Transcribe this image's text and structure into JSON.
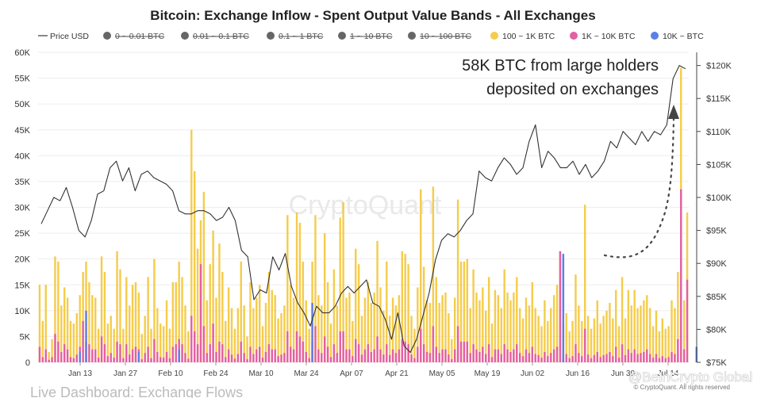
{
  "chart_data": {
    "type": "bar",
    "title": "Bitcoin: Exchange Inflow - Spent Output Value Bands - All Exchanges",
    "legend": [
      {
        "name": "Price USD",
        "color": "#888888",
        "kind": "line",
        "enabled": true
      },
      {
        "name": "0 ~ 0.01 BTC",
        "color": "#666666",
        "kind": "dot",
        "enabled": false
      },
      {
        "name": "0.01 ~ 0.1 BTC",
        "color": "#666666",
        "kind": "dot",
        "enabled": false
      },
      {
        "name": "0.1 ~ 1 BTC",
        "color": "#666666",
        "kind": "dot",
        "enabled": false
      },
      {
        "name": "1 ~ 10 BTC",
        "color": "#666666",
        "kind": "dot",
        "enabled": false
      },
      {
        "name": "10 ~ 100 BTC",
        "color": "#666666",
        "kind": "dot",
        "enabled": false
      },
      {
        "name": "100 ~ 1K BTC",
        "color": "#f5cc4b",
        "kind": "dot",
        "enabled": true
      },
      {
        "name": "1K ~ 10K BTC",
        "color": "#e45fa4",
        "kind": "dot",
        "enabled": true
      },
      {
        "name": "10K ~ BTC",
        "color": "#5b7fe6",
        "kind": "dot",
        "enabled": true
      }
    ],
    "y_left": {
      "min": 0,
      "max": 60000,
      "ticks": [
        "0",
        "5K",
        "10K",
        "15K",
        "20K",
        "25K",
        "30K",
        "35K",
        "40K",
        "45K",
        "50K",
        "55K",
        "60K"
      ]
    },
    "y_right": {
      "min": 75000,
      "max": 122000,
      "ticks": [
        "$75K",
        "$80K",
        "$85K",
        "$90K",
        "$95K",
        "$100K",
        "$105K",
        "$110K",
        "$115K",
        "$120K"
      ],
      "tick_values": [
        75000,
        80000,
        85000,
        90000,
        95000,
        100000,
        105000,
        110000,
        115000,
        120000
      ]
    },
    "x_ticks": [
      "Jan 13",
      "Jan 27",
      "Feb 10",
      "Feb 24",
      "Mar 10",
      "Mar 24",
      "Apr 07",
      "Apr 21",
      "May 05",
      "May 19",
      "Jun 02",
      "Jun 16",
      "Jun 30",
      "Jul 14"
    ],
    "series": [
      {
        "name": "100 ~ 1K BTC",
        "color": "#f5cc4b",
        "values": [
          15000,
          8000,
          15000,
          2000,
          4500,
          20500,
          19500,
          11000,
          14500,
          12500,
          8000,
          7500,
          9500,
          13000,
          17500,
          19500,
          15500,
          13000,
          12500,
          6500,
          20500,
          17500,
          7500,
          9000,
          6500,
          21500,
          18000,
          6500,
          16500,
          11000,
          15000,
          15500,
          13500,
          5500,
          9000,
          16500,
          6500,
          20000,
          10500,
          7500,
          7000,
          12000,
          6500,
          15500,
          15500,
          19500,
          16500,
          11000,
          6000,
          45000,
          37000,
          22000,
          27500,
          33000,
          12000,
          19000,
          25500,
          12500,
          23000,
          17500,
          8000,
          14500,
          10500,
          6500,
          10500,
          19500,
          11000,
          5000,
          15500,
          10500,
          12500,
          15000,
          7000,
          11500,
          17500,
          14000,
          13000,
          8500,
          9500,
          11000,
          28500,
          15000,
          12500,
          29000,
          27000,
          19500,
          12000,
          6500,
          19500,
          28500,
          13000,
          11000,
          25000,
          15500,
          7500,
          18000,
          11000,
          28000,
          31000,
          12500,
          13500,
          8000,
          22000,
          19000,
          9000,
          12500,
          15500,
          11500,
          13500,
          23500,
          14500,
          10000,
          19500,
          9000,
          12500,
          11000,
          13000,
          21500,
          21000,
          19000,
          9000,
          6500,
          14500,
          33500,
          18500,
          12000,
          11500,
          34000,
          16500,
          11500,
          13000,
          13500,
          9500,
          4500,
          12500,
          31500,
          19500,
          19500,
          20000,
          10500,
          18000,
          13500,
          12000,
          14500,
          10000,
          16500,
          7500,
          14000,
          13000,
          10500,
          18000,
          13500,
          12000,
          13500,
          16500,
          10500,
          8500,
          12500,
          11000,
          15500,
          10500,
          9000,
          7000,
          12000,
          8000,
          10500,
          13000,
          15000,
          21500,
          7500,
          9500,
          6000,
          8000,
          17000,
          11000,
          8000,
          30500,
          9000,
          6500,
          8500,
          12000,
          7500,
          9000,
          10000,
          11500,
          8500,
          14000,
          7000,
          16500,
          8500,
          14000,
          11000,
          14000,
          10500,
          11000,
          12000,
          13000,
          10500,
          7000,
          10000,
          6000,
          8500,
          6500,
          7000,
          12000,
          10500,
          17500,
          57000,
          12000,
          29000
        ]
      },
      {
        "name": "1K ~ 10K BTC",
        "color": "#e45fa4",
        "values": [
          3000,
          1000,
          2500,
          500,
          1000,
          5500,
          4000,
          2000,
          3500,
          2500,
          1000,
          800,
          1500,
          3000,
          8000,
          4000,
          3500,
          2500,
          2500,
          900,
          5000,
          3500,
          1200,
          1800,
          900,
          4000,
          3500,
          800,
          3500,
          1500,
          2500,
          3000,
          2500,
          600,
          1800,
          3000,
          800,
          4500,
          2000,
          1000,
          900,
          2000,
          800,
          3000,
          3500,
          4500,
          3500,
          1800,
          700,
          9000,
          6000,
          3500,
          19000,
          7000,
          1800,
          3500,
          7500,
          2000,
          4000,
          3500,
          1000,
          2500,
          1500,
          700,
          1600,
          4000,
          1800,
          600,
          3000,
          1600,
          2500,
          3000,
          900,
          2000,
          3500,
          2500,
          2500,
          1200,
          1500,
          1800,
          6000,
          3000,
          2500,
          6000,
          5000,
          4000,
          2000,
          800,
          4000,
          7000,
          2500,
          1800,
          5000,
          3000,
          1000,
          3500,
          1800,
          6000,
          6000,
          2500,
          2500,
          1200,
          4500,
          3500,
          1500,
          2500,
          3500,
          2000,
          2500,
          5000,
          2500,
          1500,
          3500,
          1400,
          2500,
          1800,
          2500,
          4500,
          4000,
          3500,
          1500,
          800,
          3000,
          6500,
          3500,
          2000,
          1800,
          7000,
          3000,
          1800,
          2500,
          2500,
          1500,
          600,
          2500,
          7000,
          4000,
          4000,
          4000,
          1800,
          3500,
          2500,
          2000,
          3000,
          1600,
          3500,
          1000,
          2500,
          2500,
          1600,
          3500,
          2500,
          2000,
          2500,
          3500,
          1800,
          1200,
          2500,
          1800,
          3000,
          1600,
          1400,
          900,
          2000,
          1200,
          1800,
          2500,
          3000,
          21500,
          1000,
          1600,
          800,
          1200,
          3500,
          1800,
          1200,
          6500,
          1500,
          800,
          1400,
          2000,
          1000,
          1400,
          1600,
          2000,
          1200,
          3000,
          900,
          3500,
          1400,
          2500,
          1800,
          2500,
          1600,
          1800,
          2000,
          2500,
          1600,
          900,
          1600,
          800,
          1200,
          800,
          1000,
          2000,
          1600,
          4500,
          33500,
          2500,
          16000
        ]
      },
      {
        "name": "10K ~ BTC",
        "color": "#5b7fe6",
        "values": [
          0,
          0,
          0,
          0,
          0,
          0,
          0,
          0,
          0,
          0,
          0,
          0,
          0,
          2000,
          0,
          10000,
          0,
          0,
          0,
          0,
          0,
          0,
          0,
          0,
          0,
          0,
          0,
          0,
          0,
          0,
          0,
          0,
          2000,
          0,
          0,
          0,
          0,
          0,
          0,
          0,
          0,
          0,
          0,
          0,
          0,
          2500,
          0,
          0,
          0,
          0,
          0,
          0,
          0,
          0,
          0,
          0,
          0,
          0,
          0,
          0,
          0,
          0,
          0,
          0,
          0,
          0,
          0,
          0,
          0,
          0,
          0,
          0,
          0,
          0,
          0,
          0,
          0,
          0,
          0,
          0,
          0,
          0,
          0,
          0,
          0,
          0,
          0,
          0,
          11500,
          0,
          0,
          0,
          0,
          0,
          0,
          0,
          0,
          0,
          0,
          0,
          0,
          0,
          0,
          0,
          0,
          0,
          0,
          0,
          0,
          0,
          0,
          0,
          0,
          0,
          0,
          0,
          0,
          0,
          0,
          0,
          0,
          0,
          0,
          0,
          0,
          0,
          0,
          0,
          0,
          0,
          0,
          0,
          0,
          0,
          0,
          0,
          0,
          0,
          0,
          0,
          0,
          0,
          0,
          0,
          0,
          0,
          0,
          0,
          0,
          0,
          0,
          0,
          0,
          0,
          0,
          0,
          0,
          0,
          0,
          0,
          0,
          0,
          0,
          0,
          0,
          0,
          0,
          0,
          0,
          21000,
          0,
          0,
          0,
          0,
          0,
          0,
          0,
          0,
          0,
          0,
          0,
          0,
          0,
          0,
          0,
          0,
          0,
          0,
          0,
          0,
          0,
          0,
          0,
          0,
          0,
          0,
          0,
          0,
          0,
          0,
          0,
          0,
          0,
          0,
          0,
          0,
          0,
          0,
          0,
          0,
          0,
          0,
          3000,
          0,
          0
        ]
      }
    ],
    "price_series": {
      "name": "Price USD",
      "color": "#333333",
      "values": [
        96000,
        98000,
        100000,
        99500,
        101500,
        98500,
        95000,
        94000,
        96500,
        100500,
        101000,
        104500,
        105500,
        102500,
        104500,
        101000,
        103500,
        104000,
        103000,
        102500,
        102000,
        101000,
        98000,
        97500,
        97500,
        98000,
        98000,
        97500,
        96500,
        97000,
        98500,
        96500,
        92000,
        91000,
        84500,
        86000,
        85500,
        91000,
        89000,
        91500,
        86500,
        84000,
        82500,
        80500,
        83500,
        82500,
        82500,
        83500,
        85500,
        86500,
        85500,
        86500,
        87500,
        84000,
        83500,
        81500,
        78500,
        82500,
        77500,
        76500,
        78500,
        82000,
        85500,
        90500,
        93500,
        94500,
        94000,
        95000,
        96500,
        97500,
        104000,
        103000,
        102500,
        104500,
        106000,
        105000,
        103500,
        104500,
        108500,
        111000,
        104500,
        107000,
        106000,
        104500,
        104500,
        105500,
        103500,
        105000,
        103000,
        104000,
        105500,
        108500,
        107500,
        110000,
        109000,
        108000,
        110000,
        108500,
        110000,
        109500,
        111000,
        118000,
        120000,
        119500
      ]
    }
  },
  "annotation": {
    "line1": "58K BTC from large holders",
    "line2": "deposited on exchanges"
  },
  "watermark": "CryptoQuant",
  "credit": "© CryptoQuant. All rights reserved",
  "brand": "@BeInCrypto Global",
  "footer": "Live Dashboard: Exchange Flows"
}
